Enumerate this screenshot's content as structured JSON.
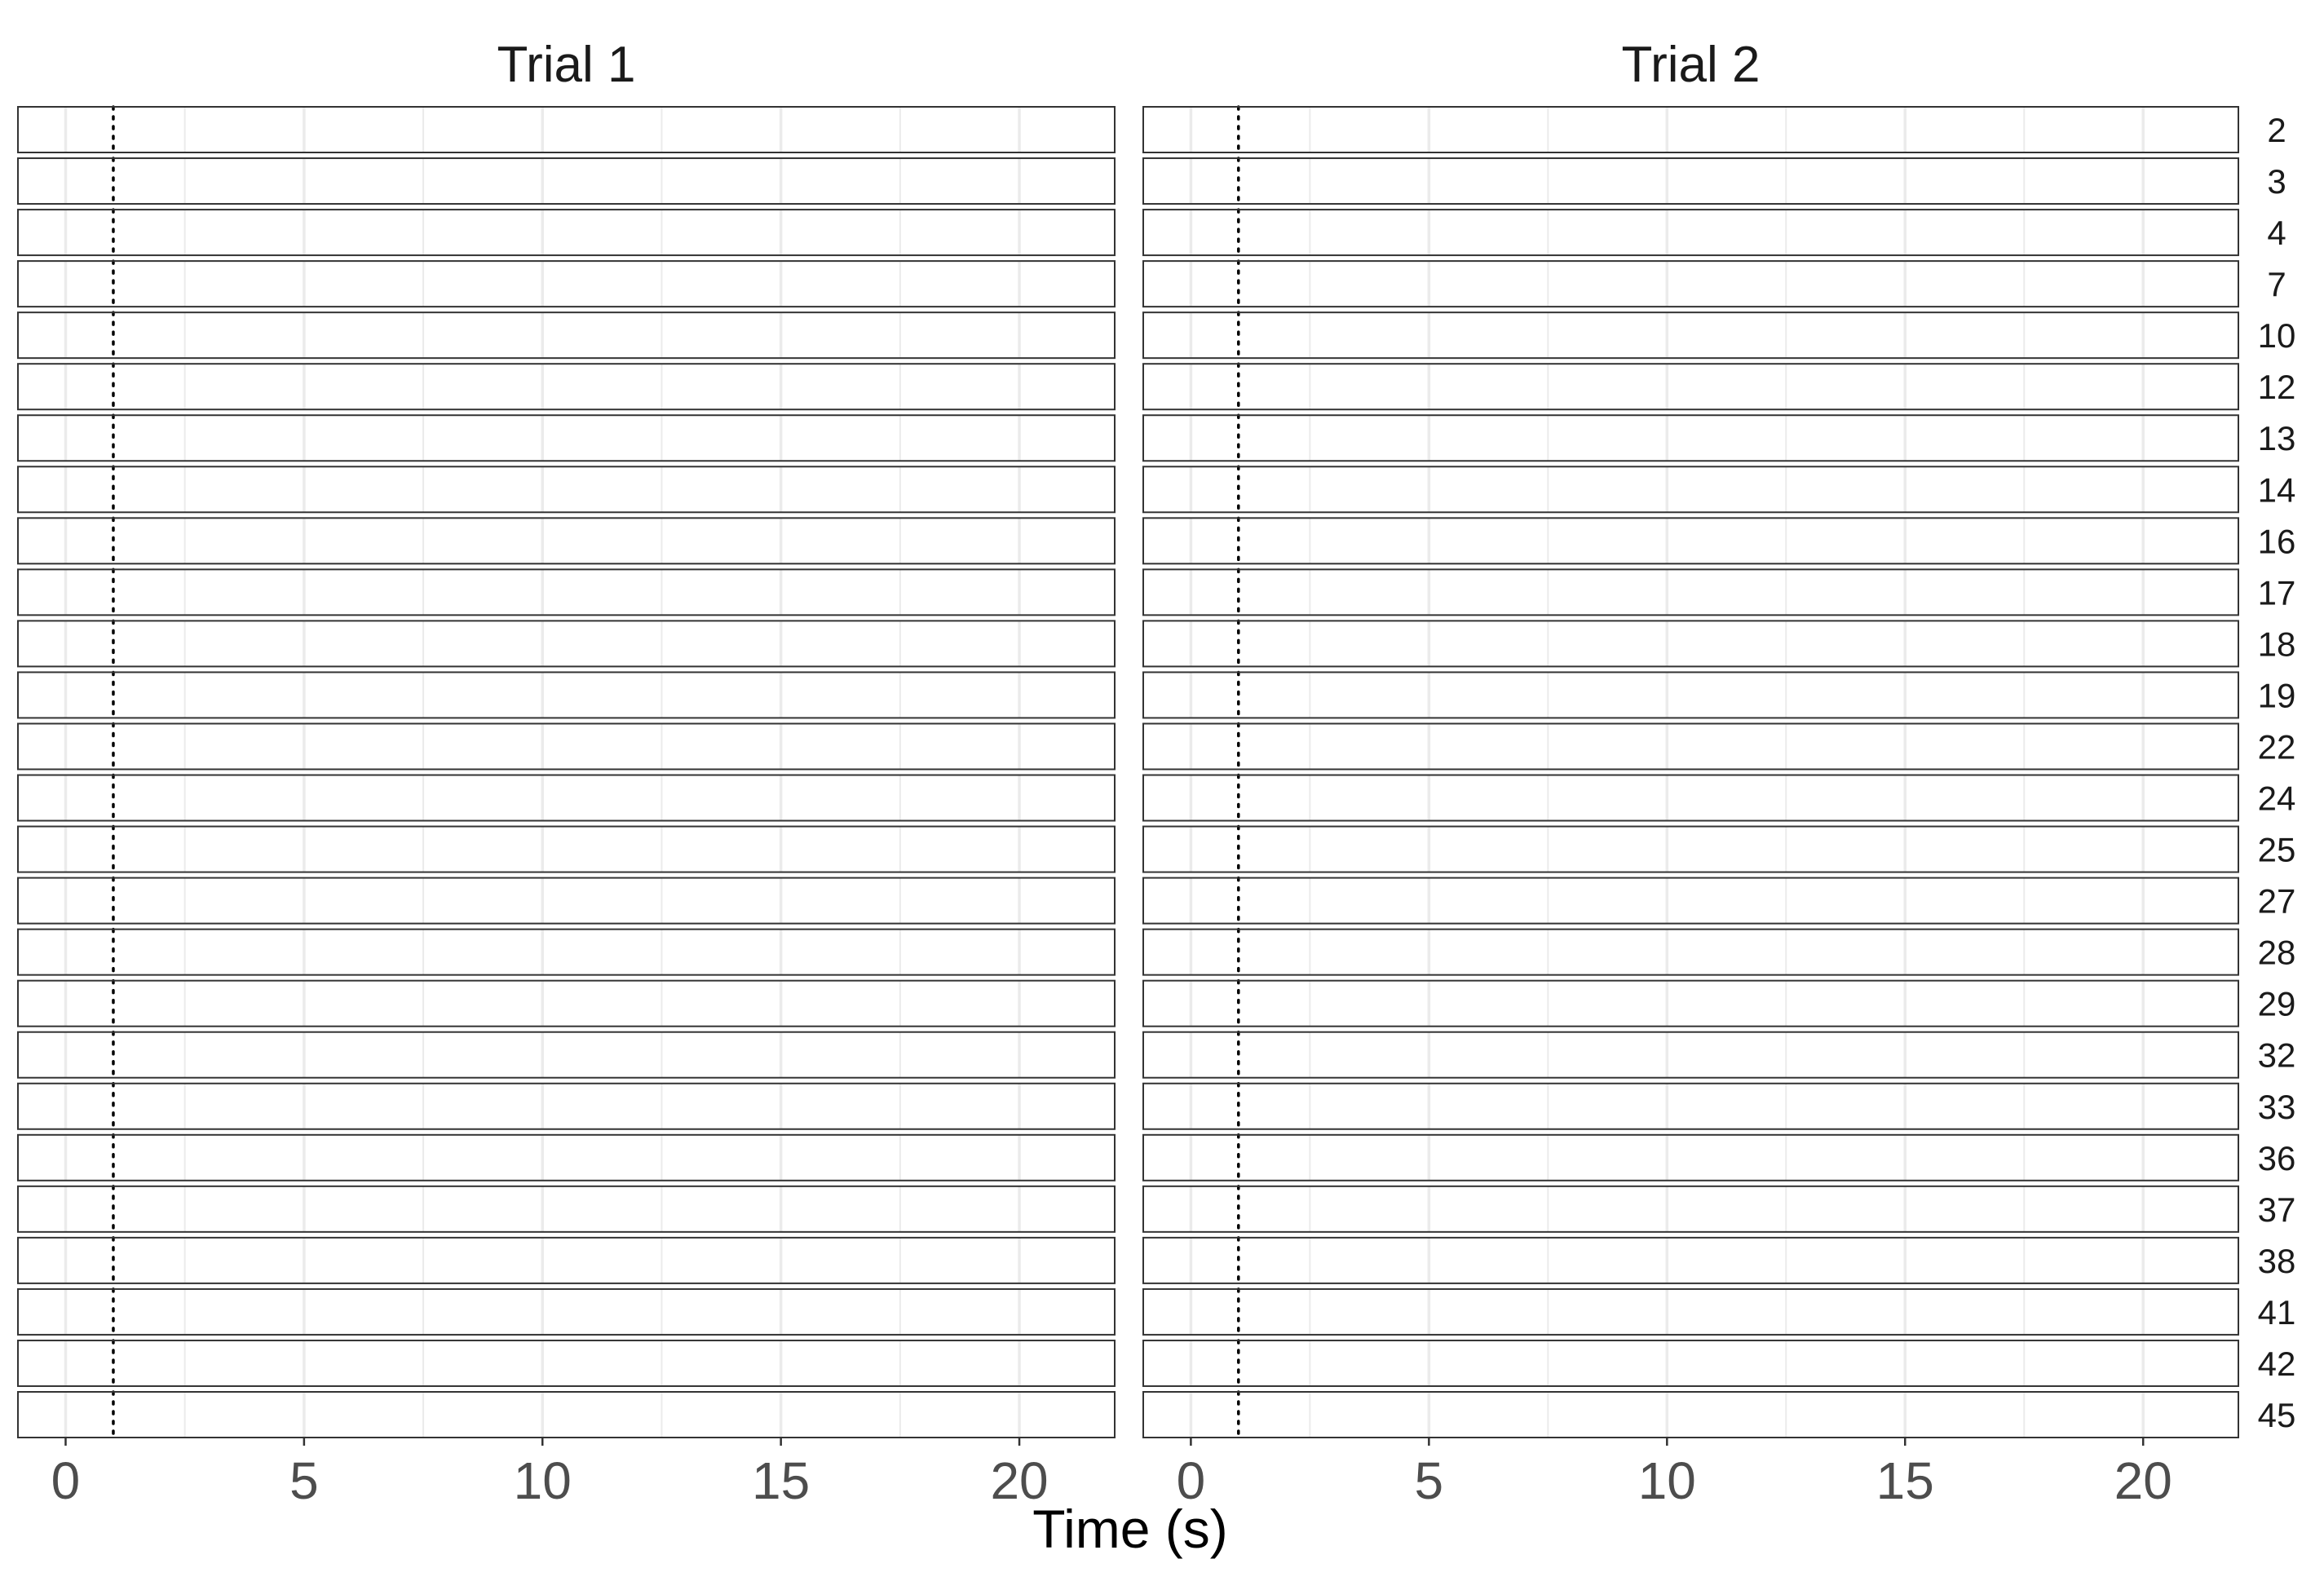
{
  "chart_data": {
    "type": "line",
    "xlabel": "Time (s)",
    "ylabel": "",
    "xlim": [
      -1,
      22
    ],
    "x_ticks": [
      0,
      5,
      10,
      15,
      20
    ],
    "x_minor_ticks": [
      2.5,
      7.5,
      12.5,
      17.5
    ],
    "vline_x": 1,
    "vline_style": "dotted",
    "columns": [
      "Trial 1",
      "Trial 2"
    ],
    "rows": [
      "2",
      "3",
      "4",
      "7",
      "10",
      "12",
      "13",
      "14",
      "16",
      "17",
      "18",
      "19",
      "22",
      "24",
      "25",
      "27",
      "28",
      "29",
      "32",
      "33",
      "36",
      "37",
      "38",
      "41",
      "42",
      "45"
    ],
    "grid": true,
    "colors": {
      "panel_border": "#333333",
      "grid_line": "#ebebeb",
      "vline": "#000000",
      "tick_label": "#4d4d4d"
    }
  }
}
